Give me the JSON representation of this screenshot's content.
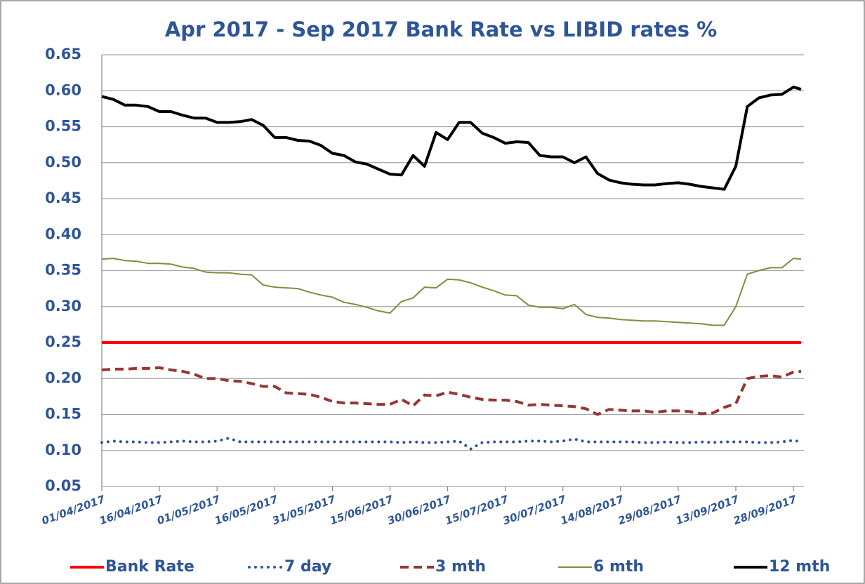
{
  "chart_data": {
    "type": "line",
    "title": "Apr 2017 - Sep 2017 Bank Rate vs LIBID rates %",
    "x": [
      "01/04/2017",
      "04/04/2017",
      "07/04/2017",
      "10/04/2017",
      "13/04/2017",
      "16/04/2017",
      "19/04/2017",
      "22/04/2017",
      "25/04/2017",
      "28/04/2017",
      "01/05/2017",
      "04/05/2017",
      "07/05/2017",
      "10/05/2017",
      "13/05/2017",
      "16/05/2017",
      "19/05/2017",
      "22/05/2017",
      "25/05/2017",
      "28/05/2017",
      "31/05/2017",
      "03/06/2017",
      "06/06/2017",
      "09/06/2017",
      "12/06/2017",
      "15/06/2017",
      "18/06/2017",
      "21/06/2017",
      "24/06/2017",
      "27/06/2017",
      "30/06/2017",
      "03/07/2017",
      "06/07/2017",
      "09/07/2017",
      "12/07/2017",
      "15/07/2017",
      "18/07/2017",
      "21/07/2017",
      "24/07/2017",
      "27/07/2017",
      "30/07/2017",
      "02/08/2017",
      "05/08/2017",
      "08/08/2017",
      "11/08/2017",
      "14/08/2017",
      "17/08/2017",
      "20/08/2017",
      "23/08/2017",
      "26/08/2017",
      "29/08/2017",
      "01/09/2017",
      "04/09/2017",
      "07/09/2017",
      "10/09/2017",
      "13/09/2017",
      "16/09/2017",
      "19/09/2017",
      "22/09/2017",
      "25/09/2017",
      "28/09/2017",
      "30/09/2017"
    ],
    "series": [
      {
        "name": "Bank Rate",
        "color": "#ff0000",
        "style": "solid",
        "width": 4,
        "values": [
          0.25,
          0.25,
          0.25,
          0.25,
          0.25,
          0.25,
          0.25,
          0.25,
          0.25,
          0.25,
          0.25,
          0.25,
          0.25,
          0.25,
          0.25,
          0.25,
          0.25,
          0.25,
          0.25,
          0.25,
          0.25,
          0.25,
          0.25,
          0.25,
          0.25,
          0.25,
          0.25,
          0.25,
          0.25,
          0.25,
          0.25,
          0.25,
          0.25,
          0.25,
          0.25,
          0.25,
          0.25,
          0.25,
          0.25,
          0.25,
          0.25,
          0.25,
          0.25,
          0.25,
          0.25,
          0.25,
          0.25,
          0.25,
          0.25,
          0.25,
          0.25,
          0.25,
          0.25,
          0.25,
          0.25,
          0.25,
          0.25,
          0.25,
          0.25,
          0.25,
          0.25,
          0.25
        ]
      },
      {
        "name": "7 day",
        "color": "#2e5597",
        "style": "dotted",
        "width": 4,
        "values": [
          0.111,
          0.113,
          0.112,
          0.112,
          0.111,
          0.111,
          0.112,
          0.113,
          0.112,
          0.112,
          0.113,
          0.117,
          0.112,
          0.112,
          0.112,
          0.112,
          0.112,
          0.112,
          0.112,
          0.112,
          0.112,
          0.112,
          0.112,
          0.112,
          0.112,
          0.112,
          0.111,
          0.112,
          0.111,
          0.111,
          0.112,
          0.113,
          0.102,
          0.111,
          0.112,
          0.112,
          0.112,
          0.113,
          0.113,
          0.112,
          0.113,
          0.116,
          0.112,
          0.112,
          0.112,
          0.112,
          0.112,
          0.111,
          0.111,
          0.112,
          0.111,
          0.111,
          0.112,
          0.111,
          0.112,
          0.112,
          0.112,
          0.111,
          0.111,
          0.112,
          0.114,
          0.112
        ]
      },
      {
        "name": "3 mth",
        "color": "#963634",
        "style": "dashed",
        "width": 4,
        "values": [
          0.212,
          0.213,
          0.213,
          0.214,
          0.214,
          0.215,
          0.212,
          0.21,
          0.206,
          0.2,
          0.2,
          0.197,
          0.196,
          0.193,
          0.189,
          0.189,
          0.18,
          0.179,
          0.178,
          0.174,
          0.168,
          0.166,
          0.166,
          0.165,
          0.164,
          0.164,
          0.171,
          0.162,
          0.177,
          0.176,
          0.181,
          0.178,
          0.174,
          0.171,
          0.17,
          0.17,
          0.168,
          0.163,
          0.164,
          0.163,
          0.162,
          0.161,
          0.158,
          0.15,
          0.157,
          0.156,
          0.155,
          0.155,
          0.153,
          0.155,
          0.155,
          0.154,
          0.151,
          0.152,
          0.16,
          0.165,
          0.2,
          0.203,
          0.204,
          0.202,
          0.209,
          0.21
        ]
      },
      {
        "name": "6 mth",
        "color": "#76933c",
        "style": "solid",
        "width": 2,
        "values": [
          0.366,
          0.367,
          0.364,
          0.363,
          0.36,
          0.36,
          0.359,
          0.355,
          0.353,
          0.348,
          0.347,
          0.347,
          0.345,
          0.344,
          0.33,
          0.327,
          0.326,
          0.325,
          0.32,
          0.316,
          0.313,
          0.306,
          0.303,
          0.299,
          0.294,
          0.291,
          0.307,
          0.312,
          0.327,
          0.326,
          0.338,
          0.337,
          0.333,
          0.327,
          0.322,
          0.316,
          0.315,
          0.302,
          0.299,
          0.299,
          0.297,
          0.303,
          0.289,
          0.285,
          0.284,
          0.282,
          0.281,
          0.28,
          0.28,
          0.279,
          0.278,
          0.277,
          0.276,
          0.274,
          0.274,
          0.3,
          0.345,
          0.35,
          0.354,
          0.354,
          0.367,
          0.366
        ]
      },
      {
        "name": "12 mth",
        "color": "#000000",
        "style": "solid",
        "width": 4,
        "values": [
          0.592,
          0.588,
          0.58,
          0.58,
          0.578,
          0.571,
          0.571,
          0.566,
          0.562,
          0.562,
          0.556,
          0.556,
          0.557,
          0.56,
          0.552,
          0.535,
          0.535,
          0.531,
          0.53,
          0.524,
          0.513,
          0.51,
          0.501,
          0.498,
          0.491,
          0.484,
          0.483,
          0.51,
          0.495,
          0.542,
          0.532,
          0.556,
          0.556,
          0.541,
          0.535,
          0.527,
          0.529,
          0.528,
          0.51,
          0.508,
          0.508,
          0.5,
          0.508,
          0.485,
          0.476,
          0.472,
          0.47,
          0.469,
          0.469,
          0.471,
          0.472,
          0.47,
          0.467,
          0.465,
          0.463,
          0.495,
          0.578,
          0.59,
          0.594,
          0.595,
          0.605,
          0.602
        ]
      }
    ],
    "xlim": [
      "01/04/2017",
      "30/09/2017"
    ],
    "xticks": [
      "01/04/2017",
      "16/04/2017",
      "01/05/2017",
      "16/05/2017",
      "31/05/2017",
      "15/06/2017",
      "30/06/2017",
      "15/07/2017",
      "30/07/2017",
      "14/08/2017",
      "29/08/2017",
      "13/09/2017",
      "28/09/2017"
    ],
    "ylim": [
      0.05,
      0.65
    ],
    "yticks": [
      {
        "value": 0.05,
        "label": "0.05"
      },
      {
        "value": 0.1,
        "label": "0.10"
      },
      {
        "value": 0.15,
        "label": "0.15"
      },
      {
        "value": 0.2,
        "label": "0.20"
      },
      {
        "value": 0.25,
        "label": "0.25"
      },
      {
        "value": 0.3,
        "label": "0.30"
      },
      {
        "value": 0.35,
        "label": "0.35"
      },
      {
        "value": 0.4,
        "label": "0.40"
      },
      {
        "value": 0.45,
        "label": "0.45"
      },
      {
        "value": 0.5,
        "label": "0.50"
      },
      {
        "value": 0.55,
        "label": "0.55"
      },
      {
        "value": 0.6,
        "label": "0.60"
      },
      {
        "value": 0.65,
        "label": "0.65"
      }
    ],
    "grid": true,
    "legend": "bottom"
  }
}
